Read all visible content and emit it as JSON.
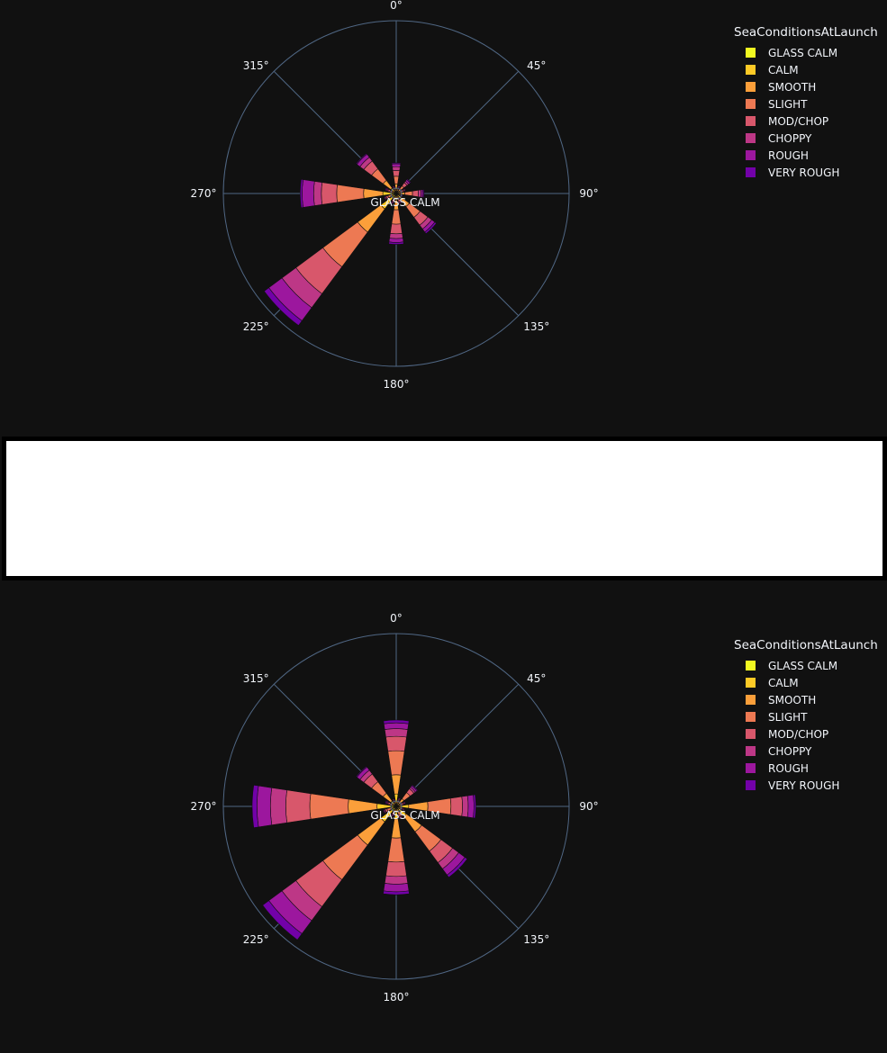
{
  "legend": {
    "title": "SeaConditionsAtLaunch",
    "items": [
      {
        "label": "GLASS CALM",
        "color": "#f0f921"
      },
      {
        "label": "CALM",
        "color": "#fdca26"
      },
      {
        "label": "SMOOTH",
        "color": "#fb9f3a"
      },
      {
        "label": "SLIGHT",
        "color": "#ed7953"
      },
      {
        "label": "MOD/CHOP",
        "color": "#d8576b"
      },
      {
        "label": "CHOPPY",
        "color": "#bd3786"
      },
      {
        "label": "ROUGH",
        "color": "#9c179e"
      },
      {
        "label": "VERY ROUGH",
        "color": "#7201a8"
      }
    ]
  },
  "angular_ticks": [
    "0°",
    "45°",
    "90°",
    "135°",
    "180°",
    "225°",
    "270°",
    "315°"
  ],
  "chart_data": [
    {
      "type": "barpolar",
      "center_label": "GLASS CALM",
      "categories_deg": [
        0,
        22.5,
        45,
        67.5,
        90,
        112.5,
        135,
        157.5,
        180,
        202.5,
        225,
        247.5,
        270,
        292.5,
        315,
        337.5
      ],
      "legend_title": "SeaConditionsAtLaunch",
      "series": [
        {
          "name": "GLASS CALM",
          "values": [
            0.1,
            0.1,
            0.1,
            0.1,
            0.1,
            0.1,
            0.2,
            0.1,
            0.2,
            0.1,
            0.5,
            0.1,
            0.4,
            0.1,
            0.2,
            0.1
          ]
        },
        {
          "name": "CALM",
          "values": [
            0.3,
            0.1,
            0.2,
            0.1,
            0.3,
            0.1,
            0.5,
            0.1,
            0.5,
            0.1,
            1.5,
            0.2,
            1.0,
            0.1,
            0.5,
            0.1
          ]
        },
        {
          "name": "SMOOTH",
          "values": [
            0.6,
            0.1,
            0.3,
            0.2,
            0.5,
            0.1,
            1.0,
            0.2,
            1.0,
            0.2,
            3.0,
            0.3,
            2.0,
            0.2,
            1.0,
            0.1
          ]
        },
        {
          "name": "SLIGHT",
          "values": [
            0.8,
            0.2,
            0.4,
            0.2,
            0.8,
            0.1,
            1.4,
            0.3,
            1.5,
            0.3,
            4.5,
            0.3,
            2.8,
            0.3,
            1.5,
            0.2
          ]
        },
        {
          "name": "MOD/CHOP",
          "values": [
            0.6,
            0.1,
            0.4,
            0.2,
            0.6,
            0.1,
            1.0,
            0.2,
            1.0,
            0.2,
            3.5,
            0.2,
            1.6,
            0.2,
            1.0,
            0.1
          ]
        },
        {
          "name": "CHOPPY",
          "values": [
            0.4,
            0.1,
            0.2,
            0.1,
            0.3,
            0.1,
            0.5,
            0.1,
            0.5,
            0.1,
            1.8,
            0.1,
            0.8,
            0.1,
            0.5,
            0.1
          ]
        },
        {
          "name": "ROUGH",
          "values": [
            0.3,
            0.1,
            0.2,
            0.1,
            0.2,
            0.1,
            0.4,
            0.1,
            0.4,
            0.1,
            1.7,
            0.1,
            1.2,
            0.1,
            0.4,
            0.1
          ]
        },
        {
          "name": "VERY ROUGH",
          "values": [
            0.1,
            0.0,
            0.1,
            0.0,
            0.1,
            0.0,
            0.2,
            0.0,
            0.2,
            0.0,
            0.6,
            0.0,
            0.2,
            0.1,
            0.1,
            0.0
          ]
        }
      ],
      "radial_range": [
        0,
        18
      ],
      "angular_direction": "clockwise",
      "legend_position": "top-right"
    },
    {
      "type": "barpolar",
      "center_label": "GLASS CALM",
      "categories_deg": [
        0,
        22.5,
        45,
        67.5,
        90,
        112.5,
        135,
        157.5,
        180,
        202.5,
        225,
        247.5,
        270,
        292.5,
        315,
        337.5
      ],
      "legend_title": "SeaConditionsAtLaunch",
      "series": [
        {
          "name": "GLASS CALM",
          "values": [
            0.3,
            0.1,
            0.1,
            0.1,
            0.3,
            0.1,
            0.3,
            0.1,
            0.3,
            0.1,
            0.5,
            0.1,
            0.5,
            0.1,
            0.2,
            0.1
          ]
        },
        {
          "name": "CALM",
          "values": [
            1.0,
            0.1,
            0.3,
            0.1,
            1.0,
            0.1,
            1.0,
            0.2,
            1.0,
            0.1,
            1.5,
            0.2,
            1.5,
            0.1,
            0.5,
            0.1
          ]
        },
        {
          "name": "SMOOTH",
          "values": [
            2.0,
            0.2,
            0.6,
            0.2,
            2.0,
            0.2,
            2.0,
            0.3,
            2.0,
            0.2,
            3.0,
            0.3,
            3.0,
            0.2,
            1.0,
            0.1
          ]
        },
        {
          "name": "SLIGHT",
          "values": [
            2.5,
            0.2,
            0.8,
            0.2,
            2.4,
            0.2,
            2.5,
            0.3,
            2.5,
            0.3,
            4.5,
            0.4,
            4.0,
            0.3,
            1.5,
            0.2
          ]
        },
        {
          "name": "MOD/CHOP",
          "values": [
            1.5,
            0.1,
            0.5,
            0.2,
            1.2,
            0.1,
            1.5,
            0.2,
            1.5,
            0.2,
            3.5,
            0.2,
            2.5,
            0.2,
            1.0,
            0.1
          ]
        },
        {
          "name": "CHOPPY",
          "values": [
            0.8,
            0.1,
            0.2,
            0.1,
            0.6,
            0.1,
            0.8,
            0.1,
            0.8,
            0.1,
            1.8,
            0.1,
            1.6,
            0.1,
            0.5,
            0.1
          ]
        },
        {
          "name": "ROUGH",
          "values": [
            0.6,
            0.1,
            0.2,
            0.1,
            0.6,
            0.1,
            0.8,
            0.1,
            0.8,
            0.1,
            1.7,
            0.1,
            1.4,
            0.1,
            0.4,
            0.1
          ]
        },
        {
          "name": "VERY ROUGH",
          "values": [
            0.3,
            0.0,
            0.1,
            0.0,
            0.2,
            0.0,
            0.3,
            0.0,
            0.3,
            0.0,
            0.8,
            0.0,
            0.5,
            0.1,
            0.1,
            0.0
          ]
        }
      ],
      "radial_range": [
        0,
        18
      ],
      "angular_direction": "clockwise",
      "legend_position": "top-right"
    }
  ]
}
